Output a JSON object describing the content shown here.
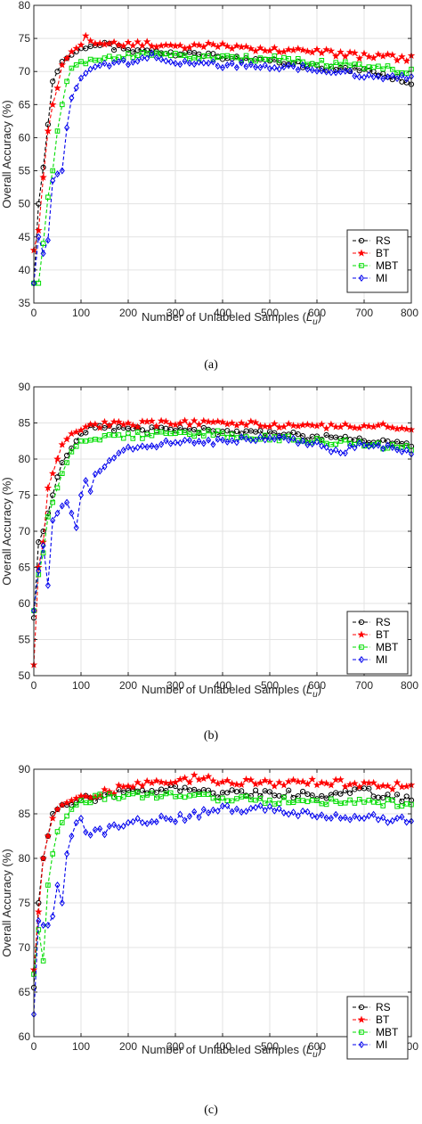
{
  "chart_data": [
    {
      "type": "line",
      "panel": "(a)",
      "caption": "(a)",
      "xlabel": "Number of Unlabeled Samples (L_u)",
      "ylabel": "Overall Accuracy (%)",
      "xlim": [
        0,
        800
      ],
      "ylim": [
        35,
        80
      ],
      "xticks": [
        0,
        100,
        200,
        300,
        400,
        500,
        600,
        700,
        800
      ],
      "xtick_labels": [
        "0",
        "100",
        "200",
        "300",
        "400",
        "500",
        "600",
        "700",
        "800"
      ],
      "yticks": [
        35,
        40,
        45,
        50,
        55,
        60,
        65,
        70,
        75,
        80
      ],
      "ytick_labels": [
        "35",
        "40",
        "45",
        "50",
        "55",
        "60",
        "65",
        "70",
        "75",
        "80"
      ],
      "grid": true,
      "legend_position": "bottom-right",
      "series": [
        {
          "name": "RS",
          "color": "#000000",
          "marker": "circle",
          "knots": [
            [
              0,
              38
            ],
            [
              10,
              50
            ],
            [
              20,
              55.5
            ],
            [
              30,
              62
            ],
            [
              40,
              68.5
            ],
            [
              50,
              70
            ],
            [
              60,
              71.5
            ],
            [
              80,
              72.5
            ],
            [
              100,
              73.5
            ],
            [
              120,
              74
            ],
            [
              150,
              74
            ],
            [
              200,
              73.2
            ],
            [
              250,
              73
            ],
            [
              300,
              72.7
            ],
            [
              400,
              72.2
            ],
            [
              500,
              71.5
            ],
            [
              600,
              70.8
            ],
            [
              700,
              70
            ],
            [
              800,
              68.5
            ]
          ]
        },
        {
          "name": "BT",
          "color": "#ff0000",
          "marker": "star",
          "knots": [
            [
              0,
              43
            ],
            [
              10,
              46
            ],
            [
              20,
              54
            ],
            [
              30,
              61
            ],
            [
              40,
              65
            ],
            [
              50,
              67.5
            ],
            [
              60,
              71
            ],
            [
              80,
              73
            ],
            [
              100,
              74
            ],
            [
              110,
              75
            ],
            [
              150,
              74.2
            ],
            [
              200,
              74.3
            ],
            [
              300,
              73.8
            ],
            [
              400,
              74
            ],
            [
              500,
              73.3
            ],
            [
              600,
              73
            ],
            [
              700,
              72.3
            ],
            [
              800,
              72
            ]
          ]
        },
        {
          "name": "MBT",
          "color": "#00dd00",
          "marker": "square",
          "knots": [
            [
              0,
              38
            ],
            [
              10,
              38
            ],
            [
              20,
              44
            ],
            [
              30,
              51
            ],
            [
              40,
              55
            ],
            [
              50,
              61
            ],
            [
              60,
              65
            ],
            [
              70,
              68.5
            ],
            [
              80,
              70.5
            ],
            [
              100,
              71.5
            ],
            [
              150,
              72
            ],
            [
              200,
              72.5
            ],
            [
              300,
              72.5
            ],
            [
              400,
              72
            ],
            [
              500,
              72
            ],
            [
              600,
              71.3
            ],
            [
              700,
              70.8
            ],
            [
              800,
              70
            ]
          ]
        },
        {
          "name": "MI",
          "color": "#0000ee",
          "marker": "diamond",
          "knots": [
            [
              0,
              38
            ],
            [
              10,
              45
            ],
            [
              20,
              42.5
            ],
            [
              30,
              44.5
            ],
            [
              40,
              53.5
            ],
            [
              50,
              54.5
            ],
            [
              60,
              55
            ],
            [
              70,
              61.5
            ],
            [
              80,
              66
            ],
            [
              100,
              69
            ],
            [
              120,
              70.5
            ],
            [
              150,
              70.8
            ],
            [
              200,
              71.5
            ],
            [
              250,
              72.5
            ],
            [
              300,
              71.5
            ],
            [
              400,
              71
            ],
            [
              500,
              70.7
            ],
            [
              600,
              70.5
            ],
            [
              700,
              69.5
            ],
            [
              800,
              69
            ]
          ]
        }
      ]
    },
    {
      "type": "line",
      "panel": "(b)",
      "caption": "(b)",
      "xlabel": "Number of Unlabeled Samples (L_u)",
      "ylabel": "Overall Accuracy (%)",
      "xlim": [
        0,
        800
      ],
      "ylim": [
        50,
        90
      ],
      "xticks": [
        0,
        100,
        200,
        300,
        400,
        500,
        600,
        700,
        800
      ],
      "xtick_labels": [
        "0",
        "100",
        "200",
        "300",
        "400",
        "500",
        "600",
        "700",
        "800"
      ],
      "yticks": [
        50,
        55,
        60,
        65,
        70,
        75,
        80,
        85,
        90
      ],
      "ytick_labels": [
        "50",
        "55",
        "60",
        "65",
        "70",
        "75",
        "80",
        "85",
        "90"
      ],
      "grid": true,
      "legend_position": "bottom-right",
      "series": [
        {
          "name": "RS",
          "color": "#000000",
          "marker": "circle",
          "knots": [
            [
              0,
              58
            ],
            [
              10,
              68.5
            ],
            [
              20,
              70
            ],
            [
              30,
              72.5
            ],
            [
              40,
              75
            ],
            [
              50,
              77.5
            ],
            [
              60,
              79.5
            ],
            [
              80,
              81.5
            ],
            [
              100,
              83.5
            ],
            [
              120,
              84.5
            ],
            [
              150,
              84.2
            ],
            [
              200,
              84
            ],
            [
              300,
              84
            ],
            [
              400,
              83.8
            ],
            [
              500,
              83.5
            ],
            [
              600,
              83
            ],
            [
              700,
              82.5
            ],
            [
              800,
              82
            ]
          ]
        },
        {
          "name": "BT",
          "color": "#ff0000",
          "marker": "star",
          "knots": [
            [
              0,
              51.5
            ],
            [
              10,
              65
            ],
            [
              20,
              68.5
            ],
            [
              30,
              76
            ],
            [
              40,
              78
            ],
            [
              50,
              80
            ],
            [
              60,
              82
            ],
            [
              80,
              83.5
            ],
            [
              100,
              84
            ],
            [
              120,
              84.5
            ],
            [
              150,
              84.7
            ],
            [
              200,
              84.8
            ],
            [
              300,
              85
            ],
            [
              400,
              85
            ],
            [
              500,
              84.8
            ],
            [
              600,
              84.6
            ],
            [
              700,
              84.4
            ],
            [
              800,
              84.5
            ]
          ]
        },
        {
          "name": "MBT",
          "color": "#00dd00",
          "marker": "square",
          "knots": [
            [
              0,
              59
            ],
            [
              10,
              64
            ],
            [
              20,
              67
            ],
            [
              30,
              72
            ],
            [
              40,
              74
            ],
            [
              50,
              76
            ],
            [
              60,
              78
            ],
            [
              80,
              81
            ],
            [
              100,
              82.5
            ],
            [
              150,
              83
            ],
            [
              200,
              83.2
            ],
            [
              300,
              83.5
            ],
            [
              400,
              83.5
            ],
            [
              500,
              83
            ],
            [
              600,
              82.5
            ],
            [
              700,
              82
            ],
            [
              800,
              81.5
            ]
          ]
        },
        {
          "name": "MI",
          "color": "#0000ee",
          "marker": "diamond",
          "knots": [
            [
              0,
              59
            ],
            [
              10,
              64.5
            ],
            [
              20,
              68
            ],
            [
              30,
              62.5
            ],
            [
              40,
              71.5
            ],
            [
              50,
              72.5
            ],
            [
              60,
              73.5
            ],
            [
              70,
              74
            ],
            [
              80,
              72.5
            ],
            [
              90,
              70.5
            ],
            [
              100,
              75
            ],
            [
              110,
              77
            ],
            [
              120,
              75.5
            ],
            [
              130,
              77.5
            ],
            [
              150,
              79
            ],
            [
              200,
              81.5
            ],
            [
              250,
              82
            ],
            [
              300,
              82.2
            ],
            [
              400,
              82.5
            ],
            [
              500,
              83
            ],
            [
              600,
              82
            ],
            [
              650,
              81
            ],
            [
              700,
              82
            ],
            [
              800,
              81
            ]
          ]
        }
      ]
    },
    {
      "type": "line",
      "panel": "(c)",
      "caption": "(c)",
      "xlabel": "Number of Unlabeled Samples (L_u)",
      "ylabel": "Overall Accuracy (%)",
      "xlim": [
        0,
        800
      ],
      "ylim": [
        60,
        90
      ],
      "xticks": [
        0,
        100,
        200,
        300,
        400,
        500,
        600,
        700,
        800
      ],
      "xtick_labels": [
        "0",
        "100",
        "200",
        "300",
        "400",
        "500",
        "600",
        "700",
        "800"
      ],
      "yticks": [
        60,
        65,
        70,
        75,
        80,
        85,
        90
      ],
      "ytick_labels": [
        "60",
        "65",
        "70",
        "75",
        "80",
        "85",
        "90"
      ],
      "grid": true,
      "legend_position": "bottom-right",
      "series": [
        {
          "name": "RS",
          "color": "#000000",
          "marker": "circle",
          "knots": [
            [
              0,
              65.5
            ],
            [
              10,
              75
            ],
            [
              20,
              80
            ],
            [
              30,
              82.5
            ],
            [
              40,
              85
            ],
            [
              50,
              85.5
            ],
            [
              60,
              86
            ],
            [
              80,
              86
            ],
            [
              100,
              86.5
            ],
            [
              150,
              87
            ],
            [
              200,
              87.5
            ],
            [
              250,
              87.5
            ],
            [
              300,
              88
            ],
            [
              400,
              87.2
            ],
            [
              500,
              87.3
            ],
            [
              600,
              87
            ],
            [
              700,
              87.5
            ],
            [
              800,
              86.5
            ]
          ]
        },
        {
          "name": "BT",
          "color": "#ff0000",
          "marker": "star",
          "knots": [
            [
              0,
              67.5
            ],
            [
              10,
              74
            ],
            [
              20,
              80
            ],
            [
              30,
              82.5
            ],
            [
              40,
              84.5
            ],
            [
              50,
              85.5
            ],
            [
              60,
              86
            ],
            [
              80,
              86.5
            ],
            [
              100,
              87
            ],
            [
              150,
              87.5
            ],
            [
              200,
              88
            ],
            [
              250,
              88.5
            ],
            [
              300,
              88.5
            ],
            [
              350,
              89
            ],
            [
              400,
              88.7
            ],
            [
              500,
              88.5
            ],
            [
              600,
              88.5
            ],
            [
              700,
              88.3
            ],
            [
              800,
              88
            ]
          ]
        },
        {
          "name": "MBT",
          "color": "#00dd00",
          "marker": "square",
          "knots": [
            [
              0,
              67
            ],
            [
              10,
              72
            ],
            [
              20,
              68.5
            ],
            [
              30,
              77
            ],
            [
              40,
              80.5
            ],
            [
              50,
              83
            ],
            [
              60,
              84
            ],
            [
              80,
              85.5
            ],
            [
              100,
              86.5
            ],
            [
              150,
              87
            ],
            [
              200,
              87
            ],
            [
              300,
              87
            ],
            [
              400,
              86.8
            ],
            [
              500,
              86.5
            ],
            [
              600,
              86.5
            ],
            [
              700,
              86.3
            ],
            [
              800,
              86.2
            ]
          ]
        },
        {
          "name": "MI",
          "color": "#0000ee",
          "marker": "diamond",
          "knots": [
            [
              0,
              62.5
            ],
            [
              10,
              73
            ],
            [
              20,
              72.5
            ],
            [
              30,
              72.5
            ],
            [
              40,
              73.5
            ],
            [
              50,
              77
            ],
            [
              60,
              75
            ],
            [
              70,
              80.5
            ],
            [
              80,
              82.5
            ],
            [
              90,
              84
            ],
            [
              100,
              84.5
            ],
            [
              110,
              83
            ],
            [
              150,
              83
            ],
            [
              200,
              84
            ],
            [
              300,
              84.5
            ],
            [
              400,
              85.5
            ],
            [
              500,
              85.5
            ],
            [
              600,
              84.8
            ],
            [
              700,
              84.6
            ],
            [
              800,
              84.2
            ]
          ]
        }
      ]
    }
  ]
}
